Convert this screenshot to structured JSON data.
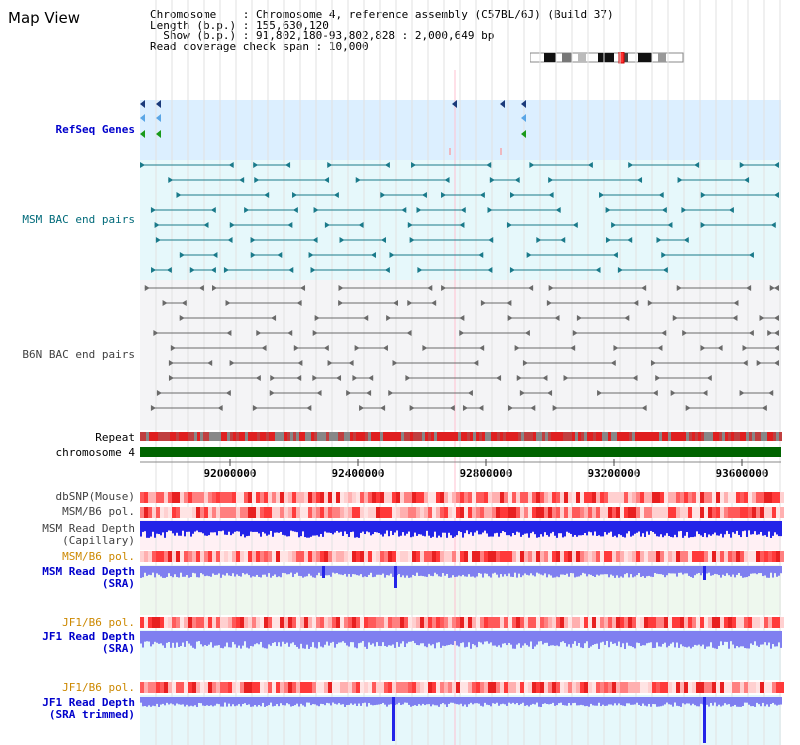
{
  "title": "Map View",
  "info": {
    "chromosome_label": "Chromosome",
    "chromosome_value": "Chromosome 4, reference assembly (C57BL/6J) (Build 37)",
    "length_label": "Length (b.p.)",
    "length_value": "155,630,120",
    "show_label": "Show (b.p.)",
    "show_value": "91,802,180-93,802,828 : 2,000,649 bp",
    "coverage_label": "Read coverage check span",
    "coverage_value": "10,000"
  },
  "tracks": {
    "refseq": "RefSeq Genes",
    "msm_bac": "MSM BAC end pairs",
    "b6n_bac": "B6N BAC end pairs",
    "repeat": "Repeat",
    "chromosome": "chromosome 4",
    "dbsnp": "dbSNP(Mouse)",
    "msm_pol1": "MSM/B6 pol.",
    "msm_depth_cap_1": "MSM Read Depth",
    "msm_depth_cap_2": "(Capillary)",
    "msm_pol2": "MSM/B6 pol.",
    "msm_depth_sra_1": "MSM Read Depth",
    "msm_depth_sra_2": "(SRA)",
    "jf1_pol1": "JF1/B6 pol.",
    "jf1_depth_sra_1": "JF1 Read Depth",
    "jf1_depth_sra_2": "(SRA)",
    "jf1_pol2": "JF1/B6 pol.",
    "jf1_depth_trim_1": "JF1 Read Depth",
    "jf1_depth_trim_2": "(SRA trimmed)"
  },
  "axis": {
    "ticks": [
      "92000000",
      "92400000",
      "92800000",
      "93200000",
      "93600000"
    ]
  },
  "colors": {
    "gene_bg": "#dcefff",
    "msm_bg": "#e6f8fb",
    "b6n_bg": "#f4f4f6",
    "chromosome": "#006400",
    "depth_blue": "#2424e8",
    "depth_light": "#7f7ff0",
    "pol_red": "#ff3a3a"
  }
}
